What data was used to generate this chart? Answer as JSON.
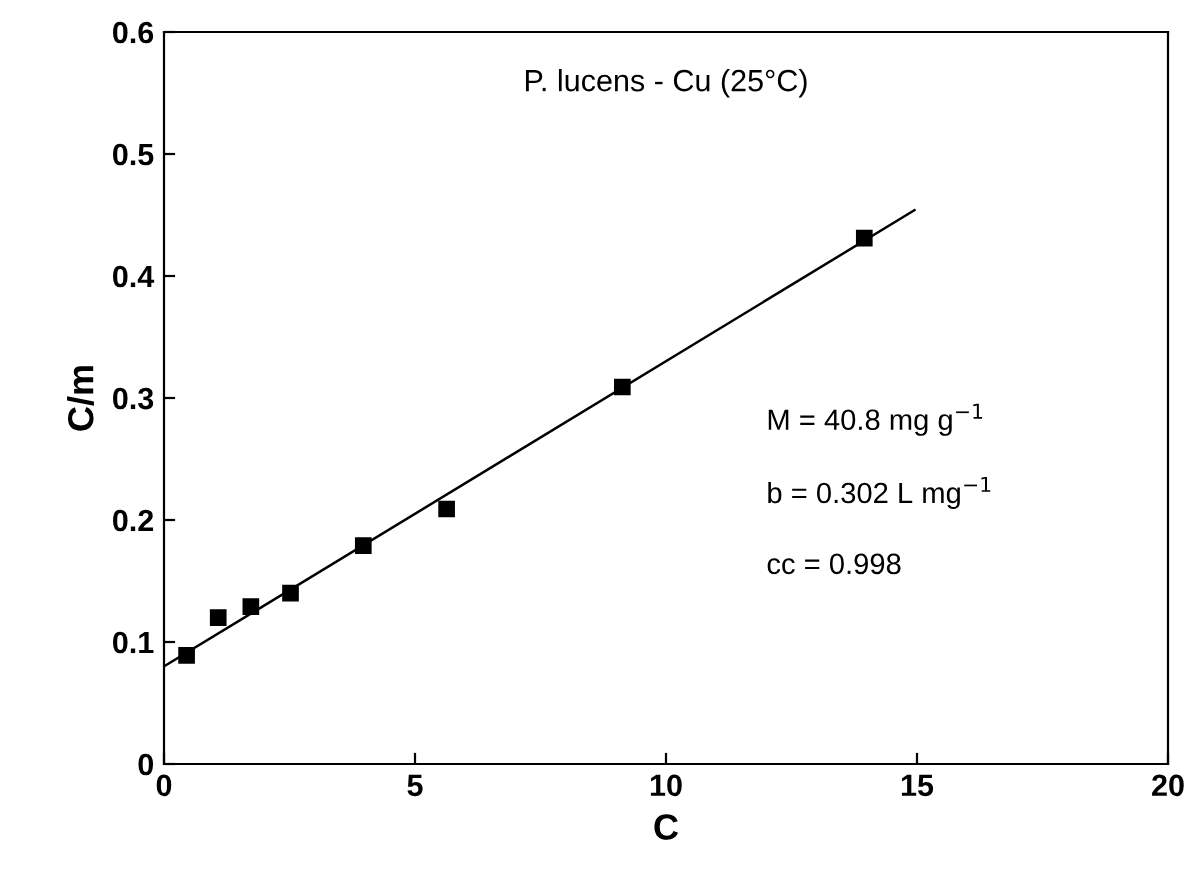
{
  "chart_data": {
    "type": "scatter",
    "title": "P. lucens - Cu (25°C)",
    "xlabel": "C",
    "ylabel": "C/m",
    "xlim": [
      0,
      20
    ],
    "ylim": [
      0,
      0.6
    ],
    "xticks": [
      0,
      5,
      10,
      15,
      20
    ],
    "yticks": [
      0,
      0.1,
      0.2,
      0.3,
      0.4,
      0.5,
      0.6
    ],
    "grid": false,
    "legend": false,
    "marker": "square",
    "series": [
      {
        "color": "#000000",
        "x": [
          0.45,
          1.08,
          1.73,
          2.52,
          3.97,
          5.63,
          9.13,
          13.95
        ],
        "values": [
          0.089,
          0.12,
          0.129,
          0.14,
          0.179,
          0.209,
          0.309,
          0.431
        ]
      },
      {
        "type": "line",
        "color": "#000000",
        "x": [
          0,
          14.95
        ],
        "values": [
          0.08,
          0.454
        ],
        "marker": "none",
        "line_style": "solid"
      }
    ],
    "annotations": [
      "M = 40.8 mg g$^{−1}$",
      "b = 0.302 L mg$^{−1}$",
      "cc = 0.998"
    ]
  }
}
